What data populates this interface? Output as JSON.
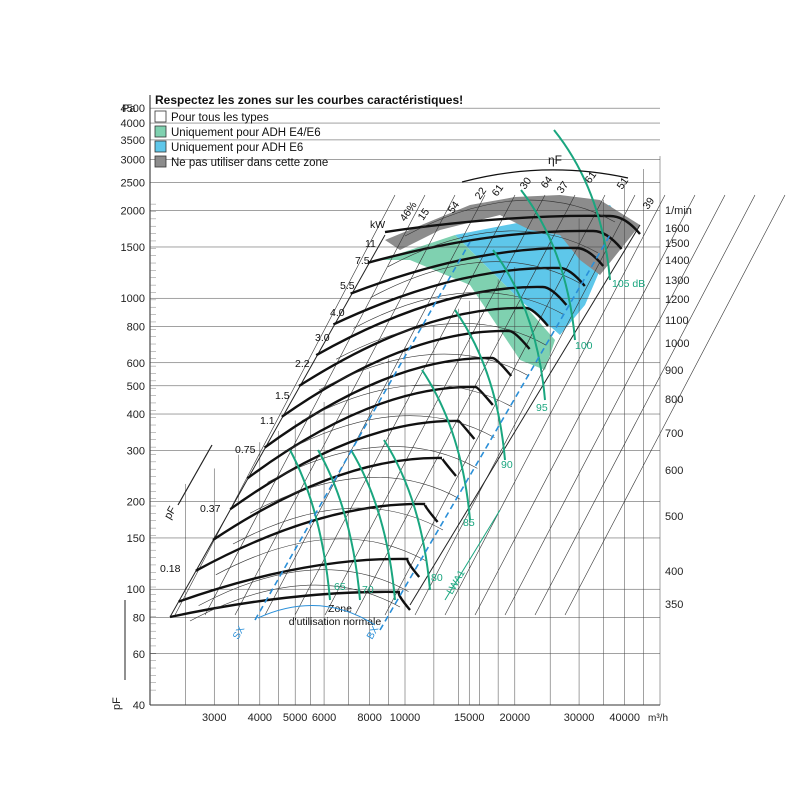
{
  "chart_data": {
    "type": "line",
    "title": "Respectez les zones sur les courbes caractéristiques!",
    "legend": [
      {
        "label": "Pour tous les types",
        "color": "#ffffff"
      },
      {
        "label": "Uniquement pour ADH E4/E6",
        "color": "#7fd1b0"
      },
      {
        "label": "Uniquement pour ADH E6",
        "color": "#5ec7ea"
      },
      {
        "label": "Ne pas utiliser dans cette zone",
        "color": "#8c8c8c"
      }
    ],
    "x_axis": {
      "unit": "m³/h",
      "scale": "log",
      "range": [
        2000,
        50000
      ],
      "ticks": [
        "3000",
        "4000",
        "5000",
        "6000",
        "8000",
        "10000",
        "15000",
        "20000",
        "30000",
        "40000"
      ]
    },
    "y_axis_left": {
      "unit": "Pa",
      "scale": "log",
      "range": [
        40,
        4800
      ],
      "ticks": [
        "4500",
        "4000",
        "3500",
        "3000",
        "2500",
        "2000",
        "1500",
        "1000",
        "800",
        "600",
        "500",
        "400",
        "300",
        "200",
        "150",
        "100",
        "80",
        "60",
        "40"
      ],
      "label": "pF"
    },
    "y_axis_right": {
      "unit": "1/min",
      "ticks": [
        "1600",
        "1500",
        "1400",
        "1300",
        "1200",
        "1100",
        "1000",
        "900",
        "800",
        "700",
        "600",
        "500",
        "400",
        "350"
      ]
    },
    "speed_values_rpm": [
      350,
      400,
      500,
      600,
      700,
      800,
      900,
      1000,
      1100,
      1200,
      1300,
      1400,
      1500,
      1600
    ],
    "power_labels_kw": [
      "kW",
      "11",
      "7.5",
      "5.5",
      "4.0",
      "3.0",
      "2.2",
      "1.5",
      "1.1",
      "0.75",
      "0.37",
      "0.18"
    ],
    "efficiency_label": "ηF",
    "efficiency_values": [
      "46%",
      "15",
      "54",
      "22",
      "61",
      "30",
      "64",
      "37",
      "61",
      "51",
      "39"
    ],
    "noise_labels_db": [
      "65",
      "70",
      "80",
      "85",
      "90",
      "95",
      "100",
      "105 dB"
    ],
    "noise_axis_label": "LWA1",
    "pressure_arrow_label": "pF",
    "zone_label": [
      "Zone",
      "d'utilisation normale"
    ],
    "zone_bounds": [
      "SX",
      "BX"
    ],
    "grid": true
  }
}
